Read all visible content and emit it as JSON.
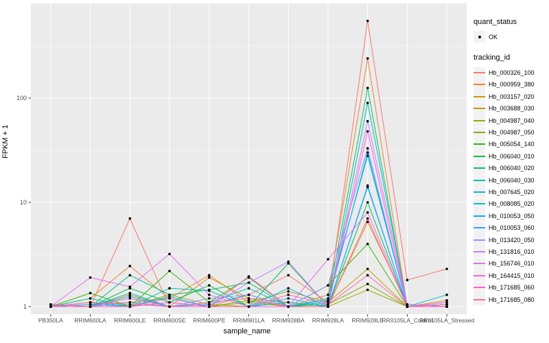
{
  "figure": {
    "y_axis_title": "FPKM + 1",
    "x_axis_title": "sample_name"
  },
  "legend": {
    "quant_status_title": "quant_status",
    "quant_status_items": [
      {
        "label": "OK"
      }
    ],
    "tracking_id_title": "tracking_id"
  },
  "colors": {
    "panel_background": "#EBEBEB",
    "grid": "#FFFFFF",
    "axis_text": "#4D4D4D",
    "tick_mark": "#333333",
    "point": "#000000",
    "legend_key_background": "#F2F2F2"
  },
  "chart_data": {
    "type": "line",
    "x_type": "categorical",
    "y_scale": "log10",
    "title": "",
    "xlabel": "sample_name",
    "ylabel": "FPKM + 1",
    "categories": [
      "PB350LA",
      "RRIM600LA",
      "RRIM600LE",
      "RRIM600SE",
      "RRIM600PE",
      "RRIM901LA",
      "RRIM928BA",
      "RRIM928LA",
      "RRIM928LE",
      "RRII105LA_Control",
      "RRII105LA_Stressed"
    ],
    "y_ticks": [
      1,
      10,
      100
    ],
    "y_minor_ticks": [
      3.162,
      31.62,
      316.2
    ],
    "ylim": [
      0.85,
      810
    ],
    "legend_position": "right",
    "grid": true,
    "point_shape": "filled-circle",
    "quant_status": "OK",
    "series": [
      {
        "name": "Hb_000326_100",
        "color": "#F8766D",
        "values": [
          1.05,
          1.0,
          7.0,
          1.0,
          1.0,
          1.3,
          2.0,
          1.1,
          550,
          1.8,
          2.3
        ]
      },
      {
        "name": "Hb_000959_380",
        "color": "#EA8331",
        "values": [
          1.0,
          1.2,
          2.45,
          1.2,
          2.0,
          1.1,
          1.0,
          1.3,
          240,
          1.0,
          1.15
        ]
      },
      {
        "name": "Hb_003157_020",
        "color": "#D89000",
        "values": [
          1.0,
          1.0,
          1.3,
          1.0,
          1.9,
          1.2,
          1.1,
          1.0,
          6.5,
          1.05,
          1.0
        ]
      },
      {
        "name": "Hb_003688_030",
        "color": "#C09B00",
        "values": [
          1.0,
          1.05,
          1.1,
          1.2,
          1.0,
          1.1,
          1.4,
          1.1,
          2.3,
          1.0,
          1.05
        ]
      },
      {
        "name": "Hb_004987_040",
        "color": "#A3A500",
        "values": [
          1.0,
          1.1,
          1.0,
          1.3,
          1.05,
          1.0,
          1.1,
          1.0,
          1.45,
          1.0,
          1.0
        ]
      },
      {
        "name": "Hb_004987_050",
        "color": "#7CAE00",
        "values": [
          1.0,
          1.0,
          1.1,
          1.0,
          1.0,
          1.15,
          1.0,
          1.05,
          1.65,
          1.0,
          1.0
        ]
      },
      {
        "name": "Hb_005054_140",
        "color": "#39B600",
        "values": [
          1.0,
          1.35,
          1.0,
          2.2,
          1.1,
          1.9,
          1.0,
          1.6,
          4.0,
          1.0,
          1.1
        ]
      },
      {
        "name": "Hb_006040_010",
        "color": "#00BB4E",
        "values": [
          1.0,
          1.0,
          1.5,
          1.1,
          1.6,
          1.0,
          2.6,
          1.0,
          10,
          1.0,
          1.05
        ]
      },
      {
        "name": "Hb_006040_020",
        "color": "#00BF7D",
        "values": [
          1.05,
          1.0,
          2.0,
          1.3,
          1.45,
          1.7,
          1.0,
          1.15,
          125,
          1.0,
          1.0
        ]
      },
      {
        "name": "Hb_006040_030",
        "color": "#00C1A3",
        "values": [
          1.0,
          1.2,
          1.0,
          1.5,
          1.42,
          1.0,
          1.1,
          1.0,
          90,
          1.05,
          1.0
        ]
      },
      {
        "name": "Hb_007645_020",
        "color": "#00BFC4",
        "values": [
          1.0,
          1.0,
          1.35,
          1.0,
          1.1,
          1.5,
          1.0,
          1.2,
          28,
          1.0,
          1.3
        ]
      },
      {
        "name": "Hb_008085_020",
        "color": "#00BAE0",
        "values": [
          1.0,
          1.1,
          1.0,
          1.25,
          1.0,
          1.0,
          1.5,
          1.0,
          14,
          1.0,
          1.0
        ]
      },
      {
        "name": "Hb_010053_050",
        "color": "#00B0F6",
        "values": [
          1.0,
          1.0,
          1.25,
          1.0,
          1.05,
          1.3,
          1.0,
          1.1,
          30,
          1.0,
          1.05
        ]
      },
      {
        "name": "Hb_010053_060",
        "color": "#35A2FF",
        "values": [
          1.0,
          1.05,
          1.0,
          1.1,
          1.0,
          1.0,
          1.2,
          1.0,
          14.5,
          1.0,
          1.0
        ]
      },
      {
        "name": "Hb_013420_050",
        "color": "#9590FF",
        "values": [
          1.0,
          1.0,
          1.1,
          1.0,
          1.2,
          1.3,
          1.0,
          1.6,
          33,
          1.0,
          1.0
        ]
      },
      {
        "name": "Hb_131816_010",
        "color": "#C77CFF",
        "values": [
          1.0,
          1.0,
          1.0,
          1.2,
          1.0,
          1.7,
          2.7,
          1.0,
          60,
          1.05,
          1.0
        ]
      },
      {
        "name": "Hb_156746_010",
        "color": "#E76BF3",
        "values": [
          1.0,
          1.9,
          1.55,
          3.2,
          1.3,
          1.0,
          1.0,
          2.85,
          8.0,
          1.0,
          1.1
        ]
      },
      {
        "name": "Hb_164415_010",
        "color": "#FA62DB",
        "values": [
          1.0,
          1.0,
          1.2,
          1.0,
          1.0,
          1.95,
          1.0,
          1.0,
          48,
          1.0,
          1.0
        ]
      },
      {
        "name": "Hb_171685_060",
        "color": "#FF62BC",
        "values": [
          1.05,
          1.0,
          1.0,
          1.1,
          1.0,
          1.0,
          1.3,
          1.05,
          2.0,
          1.0,
          1.0
        ]
      },
      {
        "name": "Hb_171685_080",
        "color": "#FF6A98",
        "values": [
          1.0,
          1.1,
          1.05,
          1.0,
          1.1,
          1.2,
          1.0,
          1.0,
          7.0,
          1.0,
          1.05
        ]
      }
    ]
  }
}
